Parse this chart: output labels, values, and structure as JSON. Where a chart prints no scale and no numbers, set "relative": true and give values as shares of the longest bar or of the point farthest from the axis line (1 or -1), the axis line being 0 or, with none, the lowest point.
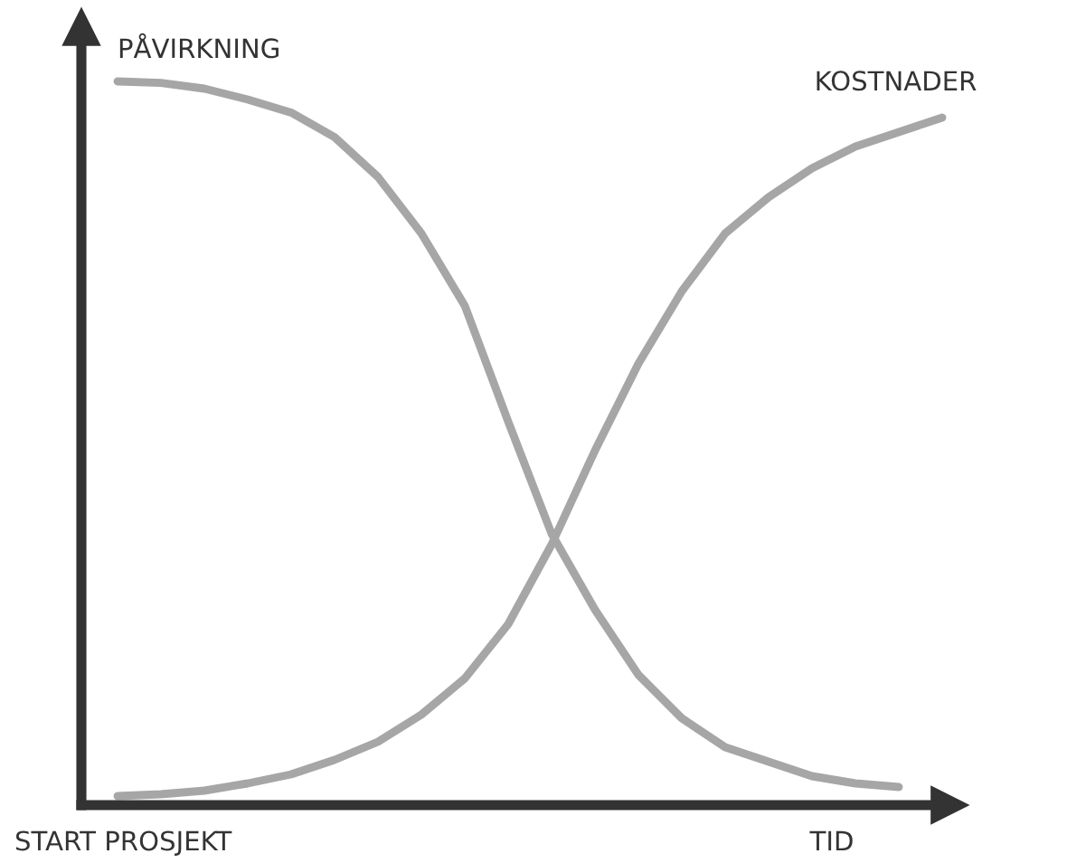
{
  "chart_data": {
    "type": "line",
    "relative": true,
    "xlabel": "TID",
    "annotations": [
      "START PROSJEKT"
    ],
    "legend": false,
    "marker": "none",
    "line_style": "solid",
    "categories": [
      null,
      null,
      null,
      null,
      null,
      null,
      null,
      null,
      null,
      null,
      null,
      null,
      null,
      null,
      null,
      null,
      null,
      null,
      null,
      null
    ],
    "series": [
      {
        "name": "PÅVIRKNING",
        "color": "#a6a6a6",
        "values": [
          1.0,
          0.998,
          0.99,
          0.975,
          0.957,
          0.923,
          0.868,
          0.79,
          0.69,
          0.53,
          0.375,
          0.27,
          0.18,
          0.12,
          0.08,
          0.06,
          0.04,
          0.03,
          0.025,
          null
        ]
      },
      {
        "name": "KOSTNADER",
        "color": "#a6a6a6",
        "values": [
          0.0125,
          0.015,
          0.02,
          0.03,
          0.0425,
          0.0625,
          0.0875,
          0.125,
          0.175,
          0.25,
          0.36,
          0.49,
          0.61,
          0.71,
          0.79,
          0.84,
          0.88,
          0.91,
          0.93,
          0.95
        ]
      }
    ]
  }
}
